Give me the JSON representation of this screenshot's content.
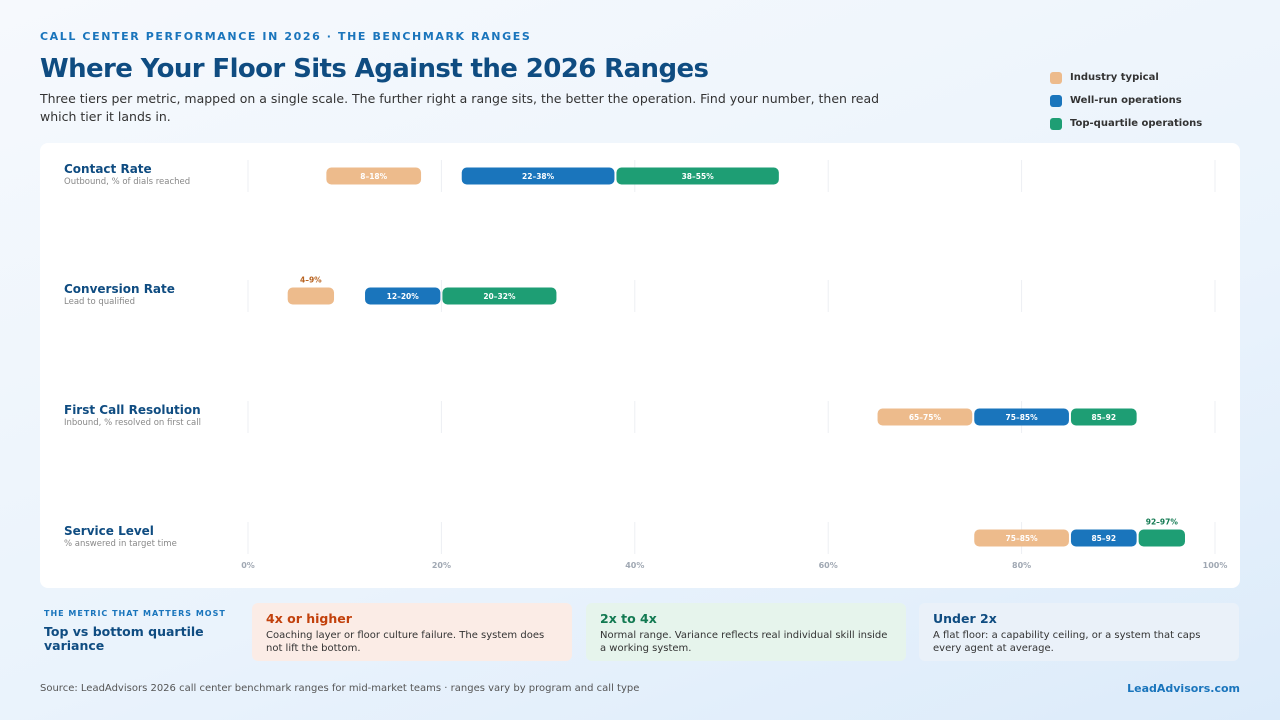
{
  "chart_data": {
    "type": "range",
    "kicker": "CALL CENTER PERFORMANCE IN 2026 · THE BENCHMARK RANGES",
    "title": "Where Your Floor Sits Against the 2026 Ranges",
    "subtitle": "Three tiers per metric, mapped on a single scale. The further right a range sits, the better the operation. Find your number, then read which tier it lands in.",
    "categories": [
      "Contact Rate",
      "Conversion Rate",
      "First Call Resolution",
      "Service Level"
    ],
    "category_notes": [
      "Outbound, % of dials reached",
      "Lead to qualified",
      "Inbound, % resolved on first call",
      "% answered in target time"
    ],
    "series": [
      {
        "name": "Industry typical",
        "color": "#edbb8c",
        "label_color": "#b8621f",
        "low": [
          8,
          4,
          65,
          75
        ],
        "high": [
          18,
          9,
          75,
          85
        ],
        "value_labels": [
          "8–18%",
          "4–9%",
          "65–75%",
          "75–85%"
        ]
      },
      {
        "name": "Well-run operations",
        "color": "#1a75bc",
        "label_color": "#1a5f99",
        "low": [
          22,
          12,
          75,
          85
        ],
        "high": [
          38,
          20,
          85,
          92
        ],
        "value_labels": [
          "22–38%",
          "12–20%",
          "75–85%",
          "85–92"
        ]
      },
      {
        "name": "Top-quartile operations",
        "color": "#1e9e74",
        "label_color": "#137a52",
        "low": [
          38,
          20,
          85,
          92
        ],
        "high": [
          55,
          32,
          92,
          97
        ],
        "value_labels": [
          "38–55%",
          "20–32%",
          "85–92",
          "92–97%"
        ]
      }
    ],
    "xlim": [
      0,
      100
    ],
    "xticks": [
      {
        "value": 0,
        "label": "0%"
      },
      {
        "value": 20,
        "label": "20%"
      },
      {
        "value": 40,
        "label": "40%"
      },
      {
        "value": 60,
        "label": "60%"
      },
      {
        "value": 80,
        "label": "80%"
      },
      {
        "value": 100,
        "label": "100%"
      }
    ],
    "grid": true,
    "legend": "top-right"
  },
  "callout": {
    "kicker": "THE METRIC THAT MATTERS MOST",
    "title": "Top vs bottom quartile variance",
    "cards": [
      {
        "title": "4x or higher",
        "text": "Coaching layer or floor culture failure. The system does not lift the bottom."
      },
      {
        "title": "2x to 4x",
        "text": "Normal range. Variance reflects real individual skill inside a working system."
      },
      {
        "title": "Under 2x",
        "text": "A flat floor: a capability ceiling, or a system that caps every agent at average."
      }
    ]
  },
  "footer": {
    "source": "Source: LeadAdvisors 2026 call center benchmark ranges for mid-market teams · ranges vary by program and call type",
    "brand": "LeadAdvisors.com"
  }
}
